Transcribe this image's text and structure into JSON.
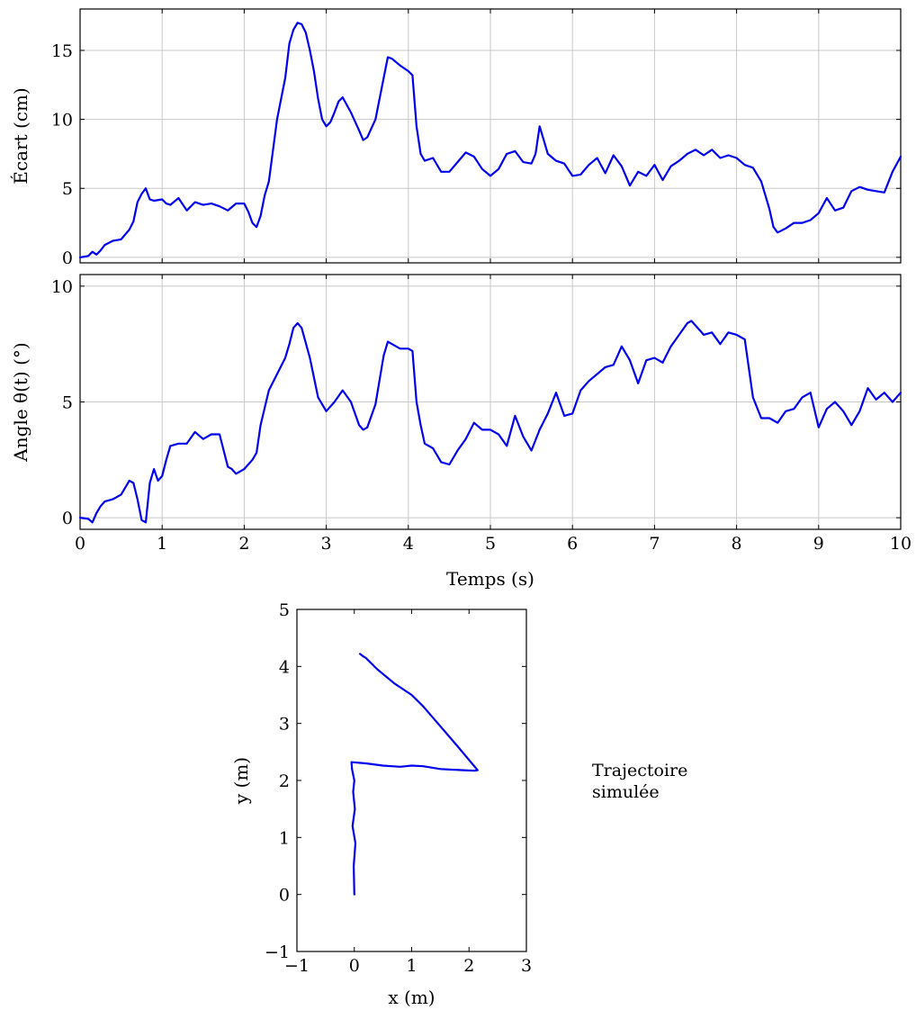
{
  "chart_data": [
    {
      "type": "line",
      "ylabel": "Écart (cm)",
      "xlim": [
        0,
        10
      ],
      "ylim": [
        -0.4,
        18
      ],
      "xticks": [
        0,
        1,
        2,
        3,
        4,
        5,
        6,
        7,
        8,
        9,
        10
      ],
      "yticks": [
        0,
        5,
        10,
        15
      ],
      "grid": true,
      "series": [
        {
          "color": "#0000ee",
          "x": [
            0,
            0.1,
            0.15,
            0.2,
            0.25,
            0.3,
            0.4,
            0.5,
            0.6,
            0.65,
            0.7,
            0.75,
            0.8,
            0.85,
            0.9,
            1.0,
            1.05,
            1.1,
            1.2,
            1.3,
            1.4,
            1.5,
            1.6,
            1.7,
            1.8,
            1.9,
            2.0,
            2.05,
            2.1,
            2.15,
            2.2,
            2.25,
            2.3,
            2.4,
            2.5,
            2.55,
            2.6,
            2.65,
            2.7,
            2.75,
            2.8,
            2.85,
            2.9,
            2.95,
            3.0,
            3.05,
            3.1,
            3.15,
            3.2,
            3.3,
            3.4,
            3.45,
            3.5,
            3.6,
            3.7,
            3.75,
            3.8,
            3.9,
            4.0,
            4.05,
            4.1,
            4.15,
            4.2,
            4.3,
            4.4,
            4.5,
            4.6,
            4.7,
            4.8,
            4.9,
            5.0,
            5.1,
            5.2,
            5.3,
            5.4,
            5.5,
            5.55,
            5.6,
            5.65,
            5.7,
            5.8,
            5.9,
            6.0,
            6.1,
            6.2,
            6.3,
            6.4,
            6.5,
            6.6,
            6.7,
            6.8,
            6.9,
            7.0,
            7.1,
            7.2,
            7.3,
            7.4,
            7.5,
            7.6,
            7.7,
            7.8,
            7.9,
            8.0,
            8.1,
            8.2,
            8.3,
            8.4,
            8.45,
            8.5,
            8.6,
            8.7,
            8.8,
            8.9,
            9.0,
            9.1,
            9.2,
            9.3,
            9.4,
            9.5,
            9.6,
            9.7,
            9.8,
            9.9,
            10.0
          ],
          "y": [
            0,
            0.1,
            0.4,
            0.2,
            0.5,
            0.9,
            1.2,
            1.3,
            2.0,
            2.6,
            4.0,
            4.6,
            5.0,
            4.2,
            4.1,
            4.2,
            3.9,
            3.8,
            4.3,
            3.4,
            4.0,
            3.8,
            3.9,
            3.7,
            3.4,
            3.9,
            3.9,
            3.3,
            2.5,
            2.2,
            3.0,
            4.5,
            5.5,
            10.0,
            13.0,
            15.5,
            16.5,
            17.0,
            16.9,
            16.3,
            15.0,
            13.5,
            11.5,
            10.0,
            9.5,
            9.8,
            10.5,
            11.3,
            11.6,
            10.5,
            9.2,
            8.5,
            8.7,
            10.0,
            13.0,
            14.5,
            14.4,
            13.9,
            13.5,
            13.2,
            9.5,
            7.5,
            7.0,
            7.2,
            6.2,
            6.2,
            6.9,
            7.6,
            7.3,
            6.4,
            5.9,
            6.4,
            7.5,
            7.7,
            6.9,
            6.8,
            7.5,
            9.5,
            8.5,
            7.5,
            7.0,
            6.8,
            5.9,
            6.0,
            6.7,
            7.2,
            6.1,
            7.4,
            6.6,
            5.2,
            6.2,
            5.9,
            6.7,
            5.6,
            6.6,
            7.0,
            7.5,
            7.8,
            7.4,
            7.8,
            7.2,
            7.4,
            7.2,
            6.7,
            6.5,
            5.5,
            3.5,
            2.2,
            1.8,
            2.1,
            2.5,
            2.5,
            2.7,
            3.2,
            4.3,
            3.4,
            3.6,
            4.8,
            5.1,
            4.9,
            4.8,
            4.7,
            6.2,
            7.3
          ]
        }
      ]
    },
    {
      "type": "line",
      "ylabel": "Angle θ(t) (°)",
      "xlabel": "Temps (s)",
      "xlim": [
        0,
        10
      ],
      "ylim": [
        -0.5,
        10.5
      ],
      "xticks": [
        0,
        1,
        2,
        3,
        4,
        5,
        6,
        7,
        8,
        9,
        10
      ],
      "yticks": [
        0,
        5,
        10
      ],
      "grid": true,
      "series": [
        {
          "color": "#0000ee",
          "x": [
            0,
            0.1,
            0.15,
            0.2,
            0.25,
            0.3,
            0.4,
            0.5,
            0.55,
            0.6,
            0.65,
            0.7,
            0.75,
            0.8,
            0.85,
            0.9,
            0.95,
            1.0,
            1.05,
            1.1,
            1.2,
            1.3,
            1.4,
            1.5,
            1.6,
            1.7,
            1.8,
            1.85,
            1.9,
            2.0,
            2.1,
            2.15,
            2.2,
            2.3,
            2.4,
            2.5,
            2.55,
            2.6,
            2.65,
            2.7,
            2.8,
            2.9,
            3.0,
            3.1,
            3.2,
            3.3,
            3.4,
            3.45,
            3.5,
            3.6,
            3.7,
            3.75,
            3.8,
            3.9,
            4.0,
            4.05,
            4.1,
            4.15,
            4.2,
            4.3,
            4.4,
            4.5,
            4.6,
            4.7,
            4.8,
            4.9,
            5.0,
            5.1,
            5.2,
            5.3,
            5.4,
            5.5,
            5.6,
            5.7,
            5.8,
            5.9,
            6.0,
            6.1,
            6.2,
            6.3,
            6.4,
            6.5,
            6.6,
            6.7,
            6.8,
            6.9,
            7.0,
            7.1,
            7.2,
            7.3,
            7.4,
            7.45,
            7.5,
            7.6,
            7.7,
            7.8,
            7.9,
            8.0,
            8.1,
            8.2,
            8.3,
            8.4,
            8.5,
            8.6,
            8.7,
            8.8,
            8.9,
            9.0,
            9.1,
            9.2,
            9.3,
            9.4,
            9.5,
            9.6,
            9.7,
            9.8,
            9.9,
            10.0
          ],
          "y": [
            0,
            -0.05,
            -0.2,
            0.2,
            0.5,
            0.7,
            0.8,
            1.0,
            1.3,
            1.6,
            1.5,
            0.8,
            -0.1,
            -0.2,
            1.5,
            2.1,
            1.6,
            1.8,
            2.5,
            3.1,
            3.2,
            3.2,
            3.7,
            3.4,
            3.6,
            3.6,
            2.2,
            2.1,
            1.9,
            2.1,
            2.5,
            2.8,
            4.0,
            5.5,
            6.2,
            6.9,
            7.5,
            8.2,
            8.4,
            8.2,
            6.9,
            5.2,
            4.6,
            5.0,
            5.5,
            5.0,
            4.0,
            3.8,
            3.9,
            4.9,
            7.0,
            7.6,
            7.5,
            7.3,
            7.3,
            7.2,
            5.0,
            4.0,
            3.2,
            3.0,
            2.4,
            2.3,
            2.9,
            3.4,
            4.1,
            3.8,
            3.8,
            3.6,
            3.1,
            4.4,
            3.5,
            2.9,
            3.8,
            4.5,
            5.4,
            4.4,
            4.5,
            5.5,
            5.9,
            6.2,
            6.5,
            6.6,
            7.4,
            6.8,
            5.8,
            6.8,
            6.9,
            6.7,
            7.4,
            7.9,
            8.4,
            8.5,
            8.3,
            7.9,
            8.0,
            7.5,
            8.0,
            7.9,
            7.7,
            5.2,
            4.3,
            4.3,
            4.1,
            4.6,
            4.7,
            5.2,
            5.4,
            3.9,
            4.7,
            5.0,
            4.6,
            4.0,
            4.6,
            5.6,
            5.1,
            5.4,
            5.0,
            5.4
          ]
        }
      ]
    },
    {
      "type": "line",
      "xlabel": "x (m)",
      "ylabel": "y (m)",
      "xlim": [
        -1,
        3
      ],
      "ylim": [
        -1,
        5
      ],
      "xticks": [
        -1,
        0,
        1,
        2,
        3
      ],
      "yticks": [
        -1,
        0,
        1,
        2,
        3,
        4,
        5
      ],
      "grid": false,
      "annotation": "Trajectoire simulée",
      "series": [
        {
          "color": "#0000ee",
          "x": [
            0.0,
            -0.01,
            0.02,
            -0.03,
            0.01,
            -0.02,
            0.0,
            -0.04,
            -0.05,
            0.2,
            0.5,
            0.8,
            1.0,
            1.2,
            1.5,
            1.7,
            1.9,
            2.1,
            2.15,
            1.8,
            1.5,
            1.2,
            1.0,
            0.7,
            0.4,
            0.2,
            0.15,
            0.1
          ],
          "y": [
            0.0,
            0.5,
            0.9,
            1.2,
            1.5,
            1.8,
            2.0,
            2.2,
            2.32,
            2.3,
            2.26,
            2.24,
            2.26,
            2.25,
            2.2,
            2.19,
            2.18,
            2.17,
            2.18,
            2.6,
            2.95,
            3.3,
            3.5,
            3.7,
            3.95,
            4.15,
            4.18,
            4.22
          ]
        }
      ]
    }
  ]
}
